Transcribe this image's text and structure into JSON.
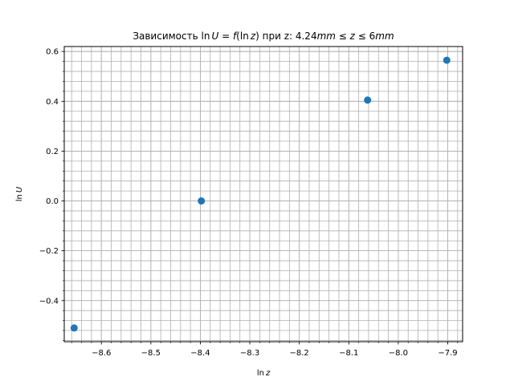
{
  "chart_data": {
    "type": "scatter",
    "title_parts": {
      "prefix": "Зависимость ",
      "ln1": "ln",
      "u": "U",
      "eq": " = ",
      "f": "f",
      "paren_open": "(",
      "ln2": "ln",
      "z": "z",
      "paren_close": ")",
      "mid": " при z: 4.24",
      "mm1": "mm",
      "le1": " ≤ ",
      "z2": "z",
      "le2": " ≤ ",
      "six": "6",
      "mm2": "mm"
    },
    "xlabel": {
      "ln": "ln",
      "var": "z"
    },
    "ylabel": {
      "ln": "ln",
      "var": "U"
    },
    "xlim": [
      -8.675,
      -7.87
    ],
    "ylim": [
      -0.565,
      0.62
    ],
    "xticks": [
      -8.6,
      -8.5,
      -8.4,
      -8.3,
      -8.2,
      -8.1,
      -8.0,
      -7.9
    ],
    "yticks": [
      -0.4,
      -0.2,
      0.0,
      0.2,
      0.4,
      0.6
    ],
    "xtick_labels": [
      "−8.6",
      "−8.5",
      "−8.4",
      "−8.3",
      "−8.2",
      "−8.1",
      "−8.0",
      "−7.9"
    ],
    "ytick_labels": [
      "−0.4",
      "−0.2",
      "0.0",
      "0.2",
      "0.4",
      "0.6"
    ],
    "grid": true,
    "minor_grid": true,
    "marker_color": "#1f77b4",
    "points": [
      {
        "x": -8.655,
        "y": -0.51
      },
      {
        "x": -8.398,
        "y": 0.0
      },
      {
        "x": -8.062,
        "y": 0.405
      },
      {
        "x": -7.902,
        "y": 0.565
      }
    ]
  }
}
